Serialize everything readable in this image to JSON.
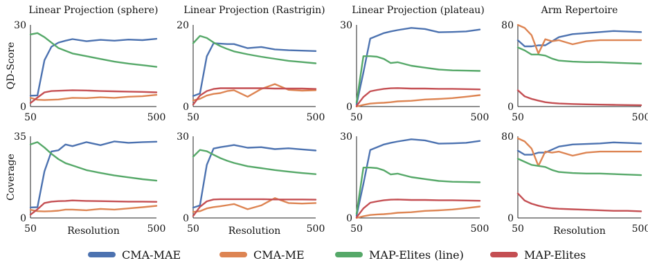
{
  "legend": [
    {
      "name": "CMA-MAE",
      "color": "#4c72b0"
    },
    {
      "name": "CMA-ME",
      "color": "#dd8452"
    },
    {
      "name": "MAP-Elites (line)",
      "color": "#55a868"
    },
    {
      "name": "MAP-Elites",
      "color": "#c44e52"
    }
  ],
  "chart_data": [
    {
      "type": "line",
      "title": "Linear Projection (sphere)",
      "ylabel": "QD-Score",
      "xlabel": "",
      "x": [
        50,
        75,
        100,
        125,
        150,
        175,
        200,
        250,
        300,
        350,
        400,
        450,
        500
      ],
      "ylim": [
        0,
        30
      ],
      "yticks": [
        0,
        30
      ],
      "xticks": [
        50,
        500
      ],
      "series": [
        {
          "name": "CMA-MAE",
          "values": [
            4,
            4.1,
            17,
            22,
            23.5,
            24.2,
            24.8,
            24,
            24.5,
            24.2,
            24.6,
            24.4,
            24.9
          ]
        },
        {
          "name": "CMA-ME",
          "values": [
            3.2,
            2.5,
            2.4,
            2.5,
            2.6,
            2.9,
            3.2,
            3.1,
            3.4,
            3.2,
            3.6,
            3.8,
            4.3
          ]
        },
        {
          "name": "MAP-Elites (line)",
          "values": [
            26.5,
            27,
            25.5,
            23.5,
            21.5,
            20.5,
            19.5,
            18.5,
            17.5,
            16.5,
            15.8,
            15.2,
            14.6
          ]
        },
        {
          "name": "MAP-Elites",
          "values": [
            1.3,
            3.3,
            5.2,
            5.7,
            5.8,
            5.9,
            6.0,
            5.9,
            5.7,
            5.6,
            5.5,
            5.4,
            5.2
          ]
        }
      ]
    },
    {
      "type": "line",
      "title": "Linear Projection (Rastrigin)",
      "ylabel": "",
      "xlabel": "",
      "x": [
        50,
        75,
        100,
        125,
        150,
        175,
        200,
        250,
        300,
        350,
        400,
        450,
        500
      ],
      "ylim": [
        0,
        20
      ],
      "yticks": [
        0,
        20
      ],
      "xticks": [
        50,
        500
      ],
      "series": [
        {
          "name": "CMA-MAE",
          "values": [
            2.6,
            3.2,
            12.3,
            15.5,
            15.4,
            15.3,
            15.3,
            14.3,
            14.6,
            14,
            13.8,
            13.7,
            13.6
          ]
        },
        {
          "name": "CMA-ME",
          "values": [
            1.5,
            1.9,
            2.7,
            3.1,
            3.3,
            3.8,
            4.0,
            2.4,
            4.3,
            5.5,
            4.1,
            3.9,
            4.0
          ]
        },
        {
          "name": "MAP-Elites (line)",
          "values": [
            15.5,
            17.3,
            16.8,
            15.7,
            14.8,
            14.1,
            13.5,
            12.8,
            12.2,
            11.7,
            11.2,
            10.9,
            10.6
          ]
        },
        {
          "name": "MAP-Elites",
          "values": [
            0.5,
            2.7,
            3.8,
            4.3,
            4.5,
            4.5,
            4.5,
            4.5,
            4.5,
            4.4,
            4.4,
            4.4,
            4.3
          ]
        }
      ]
    },
    {
      "type": "line",
      "title": "Linear Projection (plateau)",
      "ylabel": "",
      "xlabel": "",
      "x": [
        50,
        75,
        100,
        125,
        150,
        175,
        200,
        250,
        300,
        350,
        400,
        450,
        500
      ],
      "ylim": [
        0,
        30
      ],
      "yticks": [
        0,
        30
      ],
      "xticks": [
        50,
        500
      ],
      "series": [
        {
          "name": "CMA-MAE",
          "values": [
            0.8,
            12.5,
            25,
            26,
            27,
            27.6,
            28.1,
            28.9,
            28.5,
            27.3,
            27.4,
            27.6,
            28.3
          ]
        },
        {
          "name": "CMA-ME",
          "values": [
            0,
            0.6,
            1.1,
            1.3,
            1.4,
            1.6,
            1.9,
            2.1,
            2.6,
            2.8,
            3.1,
            3.6,
            4.2
          ]
        },
        {
          "name": "MAP-Elites (line)",
          "values": [
            1.5,
            18.5,
            18.5,
            18.3,
            17.5,
            16.0,
            16.3,
            15.0,
            14.3,
            13.6,
            13.3,
            13.2,
            13.1
          ]
        },
        {
          "name": "MAP-Elites",
          "values": [
            0.2,
            3.5,
            5.6,
            6.1,
            6.5,
            6.7,
            6.8,
            6.6,
            6.6,
            6.5,
            6.5,
            6.4,
            6.3
          ]
        }
      ]
    },
    {
      "type": "line",
      "title": "Arm Repertoire",
      "ylabel": "",
      "xlabel": "",
      "x": [
        50,
        75,
        100,
        125,
        150,
        175,
        200,
        250,
        300,
        350,
        400,
        450,
        500
      ],
      "ylim": [
        0,
        80
      ],
      "yticks": [
        0,
        80
      ],
      "xticks": [
        50,
        500
      ],
      "series": [
        {
          "name": "CMA-MAE",
          "values": [
            65,
            59,
            59,
            60,
            60,
            64,
            68,
            71,
            72,
            73,
            74,
            73.5,
            73
          ]
        },
        {
          "name": "CMA-ME",
          "values": [
            80,
            77,
            70,
            52,
            66,
            64,
            65,
            61,
            64,
            65,
            65,
            65,
            65
          ]
        },
        {
          "name": "MAP-Elites (line)",
          "values": [
            58,
            55,
            51,
            51,
            50,
            47,
            45,
            44,
            43.5,
            43.5,
            43,
            42.5,
            42
          ]
        },
        {
          "name": "MAP-Elites",
          "values": [
            16,
            10,
            7.5,
            5.8,
            4.3,
            3.5,
            3.0,
            2.5,
            2.2,
            1.9,
            1.7,
            1.5,
            1.3
          ]
        }
      ]
    },
    {
      "type": "line",
      "title": "",
      "ylabel": "Coverage",
      "xlabel": "Resolution",
      "x": [
        50,
        75,
        100,
        125,
        150,
        175,
        200,
        250,
        300,
        350,
        400,
        450,
        500
      ],
      "ylim": [
        0,
        35
      ],
      "yticks": [
        0,
        35
      ],
      "xticks": [
        50,
        500
      ],
      "series": [
        {
          "name": "CMA-MAE",
          "values": [
            4.5,
            4.6,
            20,
            28.5,
            29,
            31.5,
            30.8,
            32.5,
            31.2,
            32.8,
            32.2,
            32.5,
            32.7
          ]
        },
        {
          "name": "CMA-ME",
          "values": [
            3.5,
            2.9,
            2.8,
            2.9,
            3.1,
            3.6,
            3.6,
            3.3,
            3.9,
            3.6,
            4.1,
            4.6,
            5.2
          ]
        },
        {
          "name": "MAP-Elites (line)",
          "values": [
            31.5,
            32.5,
            30.2,
            27.5,
            25.2,
            23.5,
            22.5,
            20.5,
            19.3,
            18.2,
            17.4,
            16.6,
            16.0
          ]
        },
        {
          "name": "MAP-Elites",
          "values": [
            1.4,
            3.7,
            6.4,
            7.0,
            7.2,
            7.3,
            7.5,
            7.3,
            7.2,
            7.1,
            7.0,
            7.0,
            6.9
          ]
        }
      ]
    },
    {
      "type": "line",
      "title": "",
      "ylabel": "",
      "xlabel": "Resolution",
      "x": [
        50,
        75,
        100,
        125,
        150,
        175,
        200,
        250,
        300,
        350,
        400,
        450,
        500
      ],
      "ylim": [
        0,
        30
      ],
      "yticks": [
        0,
        30
      ],
      "xticks": [
        50,
        500
      ],
      "series": [
        {
          "name": "CMA-MAE",
          "values": [
            3.8,
            4.6,
            19.5,
            25.5,
            26,
            26.4,
            26.8,
            25.8,
            26,
            25.3,
            25.6,
            25.2,
            24.8
          ]
        },
        {
          "name": "CMA-ME",
          "values": [
            2.2,
            2.5,
            3.5,
            4.0,
            4.3,
            4.7,
            5.1,
            3.2,
            4.6,
            7.3,
            5.5,
            5.3,
            5.5
          ]
        },
        {
          "name": "MAP-Elites (line)",
          "values": [
            22.5,
            25,
            24.5,
            23.2,
            22,
            21,
            20.2,
            19,
            18.3,
            17.6,
            17.0,
            16.5,
            16.1
          ]
        },
        {
          "name": "MAP-Elites",
          "values": [
            0.7,
            4.1,
            6.1,
            6.8,
            6.9,
            6.9,
            6.9,
            6.9,
            6.9,
            6.8,
            6.8,
            6.8,
            6.7
          ]
        }
      ]
    },
    {
      "type": "line",
      "title": "",
      "ylabel": "",
      "xlabel": "",
      "x": [
        50,
        75,
        100,
        125,
        150,
        175,
        200,
        250,
        300,
        350,
        400,
        450,
        500
      ],
      "ylim": [
        0,
        30
      ],
      "yticks": [
        0,
        30
      ],
      "xticks": [
        50,
        500
      ],
      "series": [
        {
          "name": "CMA-MAE",
          "values": [
            0.8,
            12.5,
            25,
            26,
            27,
            27.6,
            28.1,
            28.9,
            28.5,
            27.3,
            27.4,
            27.6,
            28.3
          ]
        },
        {
          "name": "CMA-ME",
          "values": [
            0,
            0.6,
            1.1,
            1.3,
            1.4,
            1.6,
            1.9,
            2.1,
            2.6,
            2.8,
            3.1,
            3.6,
            4.2
          ]
        },
        {
          "name": "MAP-Elites (line)",
          "values": [
            1.5,
            18.5,
            18.5,
            18.3,
            17.5,
            16.0,
            16.3,
            15.0,
            14.3,
            13.6,
            13.3,
            13.2,
            13.1
          ]
        },
        {
          "name": "MAP-Elites",
          "values": [
            0.2,
            3.5,
            5.6,
            6.1,
            6.5,
            6.7,
            6.8,
            6.6,
            6.6,
            6.5,
            6.5,
            6.4,
            6.3
          ]
        }
      ]
    },
    {
      "type": "line",
      "title": "",
      "ylabel": "",
      "xlabel": "Resolution",
      "x": [
        50,
        75,
        100,
        125,
        150,
        175,
        200,
        250,
        300,
        350,
        400,
        450,
        500
      ],
      "ylim": [
        0,
        80
      ],
      "yticks": [
        0,
        80
      ],
      "xticks": [
        50,
        500
      ],
      "series": [
        {
          "name": "CMA-MAE",
          "values": [
            66,
            62,
            62,
            64,
            64,
            67,
            70,
            72,
            72.5,
            73,
            74,
            73.5,
            73
          ]
        },
        {
          "name": "CMA-ME",
          "values": [
            78,
            75,
            68,
            51,
            65,
            64,
            65,
            61,
            64,
            65,
            65,
            65,
            65
          ]
        },
        {
          "name": "MAP-Elites (line)",
          "values": [
            58,
            55,
            52,
            51,
            50,
            47,
            45,
            44,
            43.5,
            43.5,
            43,
            42.5,
            42
          ]
        },
        {
          "name": "MAP-Elites",
          "values": [
            24,
            17,
            14,
            12,
            10.5,
            9.5,
            9,
            8.5,
            8,
            7.5,
            7,
            7,
            6.5
          ]
        }
      ]
    }
  ]
}
